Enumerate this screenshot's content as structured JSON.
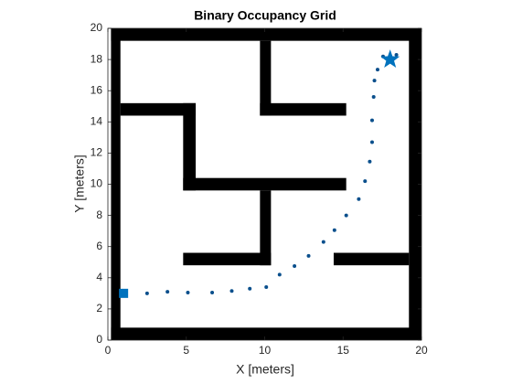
{
  "chart_data": {
    "type": "occupancy-grid",
    "title": "Binary Occupancy Grid",
    "x_label": "X [meters]",
    "y_label": "Y [meters]",
    "xlim": [
      0,
      20
    ],
    "ylim": [
      0,
      20
    ],
    "xticks": [
      0,
      5,
      10,
      15,
      20
    ],
    "yticks": [
      0,
      2,
      4,
      6,
      8,
      10,
      12,
      14,
      16,
      18,
      20
    ],
    "obstacle_color": "#000000",
    "obstacles": [
      {
        "x": [
          0.2,
          0.8
        ],
        "y": [
          0,
          20
        ]
      },
      {
        "x": [
          0.2,
          20
        ],
        "y": [
          19.2,
          20
        ]
      },
      {
        "x": [
          19.2,
          20
        ],
        "y": [
          0,
          20
        ]
      },
      {
        "x": [
          0.2,
          20
        ],
        "y": [
          0,
          0.8
        ]
      },
      {
        "x": [
          9.7,
          10.4
        ],
        "y": [
          14.4,
          19.2
        ]
      },
      {
        "x": [
          9.7,
          15.2
        ],
        "y": [
          14.4,
          15.2
        ]
      },
      {
        "x": [
          0.8,
          5.6
        ],
        "y": [
          14.4,
          15.2
        ]
      },
      {
        "x": [
          4.8,
          5.6
        ],
        "y": [
          9.6,
          15.2
        ]
      },
      {
        "x": [
          4.8,
          15.2
        ],
        "y": [
          9.6,
          10.4
        ]
      },
      {
        "x": [
          9.7,
          10.4
        ],
        "y": [
          4.8,
          9.6
        ]
      },
      {
        "x": [
          4.8,
          10.4
        ],
        "y": [
          4.8,
          5.6
        ]
      },
      {
        "x": [
          14.4,
          19.2
        ],
        "y": [
          4.8,
          5.6
        ]
      }
    ],
    "path": {
      "color": "#0a4f8c",
      "x": [
        2.5,
        3.8,
        5.1,
        6.65,
        7.9,
        9.05,
        10.1,
        10.95,
        11.9,
        12.8,
        13.75,
        14.45,
        15.2,
        16.0,
        16.4,
        16.7,
        16.85,
        16.85,
        16.95,
        17.0,
        17.2,
        17.55,
        18.4
      ],
      "y": [
        3.0,
        3.1,
        3.05,
        3.05,
        3.15,
        3.3,
        3.4,
        4.2,
        4.75,
        5.4,
        6.3,
        7.05,
        8.0,
        9.05,
        10.2,
        11.45,
        12.7,
        14.1,
        15.6,
        16.65,
        17.35,
        18.2,
        18.3
      ]
    },
    "start": {
      "x": 1,
      "y": 3,
      "color": "#0072bd"
    },
    "goal": {
      "x": 18,
      "y": 18,
      "color": "#0072bd"
    }
  }
}
